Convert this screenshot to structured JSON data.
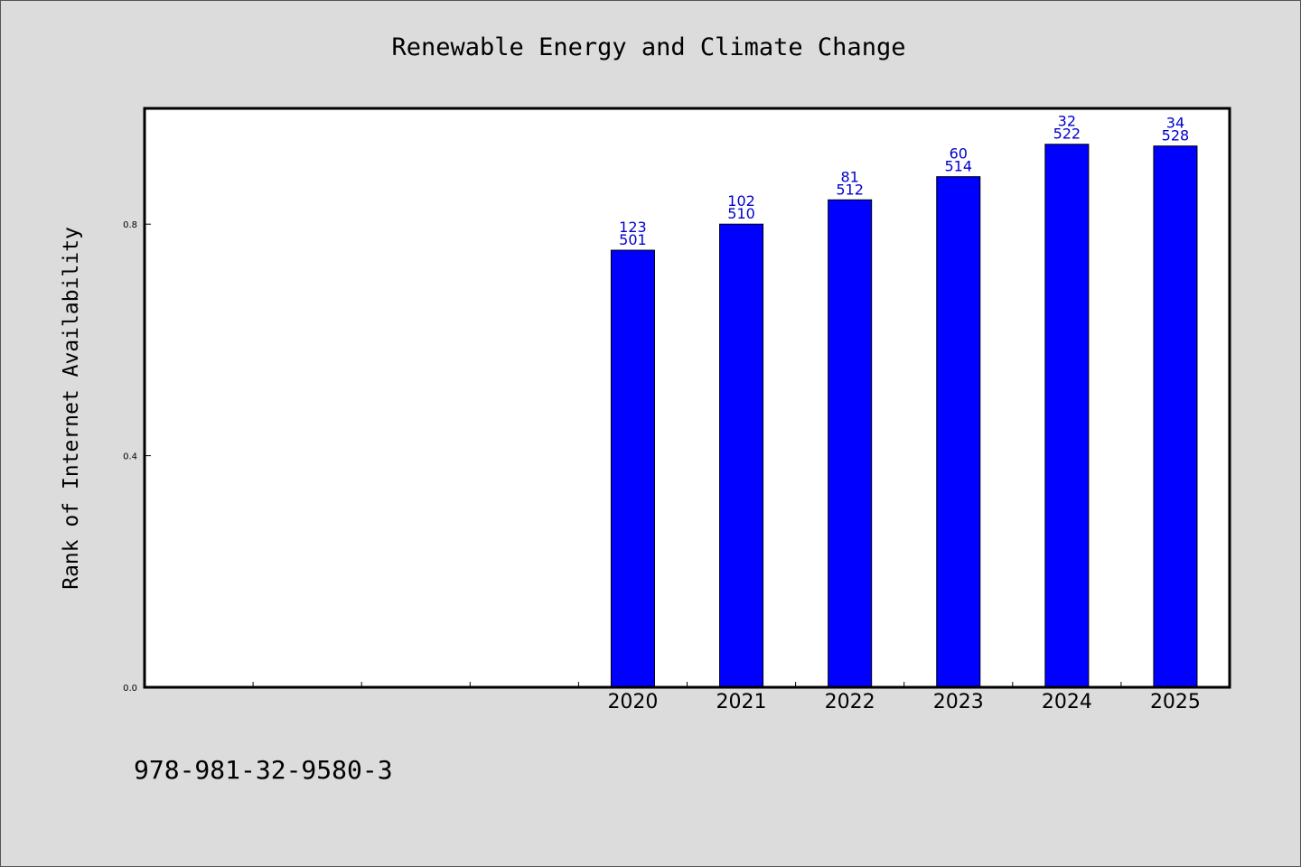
{
  "chart_data": {
    "type": "bar",
    "title": "Renewable Energy and Climate Change",
    "ylabel": "Rank of Internet Availability",
    "xlabel": "",
    "categories": [
      "",
      "",
      "",
      "",
      "2020",
      "2021",
      "2022",
      "2023",
      "2024",
      "2025"
    ],
    "values": [
      null,
      null,
      null,
      null,
      0.755,
      0.8,
      0.842,
      0.882,
      0.938,
      0.935
    ],
    "data_labels": [
      null,
      null,
      null,
      null,
      [
        "123",
        "501"
      ],
      [
        "102",
        "510"
      ],
      [
        "81",
        "512"
      ],
      [
        "60",
        "514"
      ],
      [
        "32",
        "522"
      ],
      [
        "34",
        "528"
      ]
    ],
    "yticks": [
      "0.0",
      "0.4",
      "0.8"
    ],
    "ylim": [
      0,
      1.0
    ],
    "grid": false,
    "legend": "none",
    "colors": {
      "bar": "#0000ff",
      "bar_label": "#0000cc",
      "background": "#dcdcdc",
      "plot_background": "#ffffff"
    }
  },
  "footer": {
    "isbn": "978-981-32-9580-3"
  }
}
